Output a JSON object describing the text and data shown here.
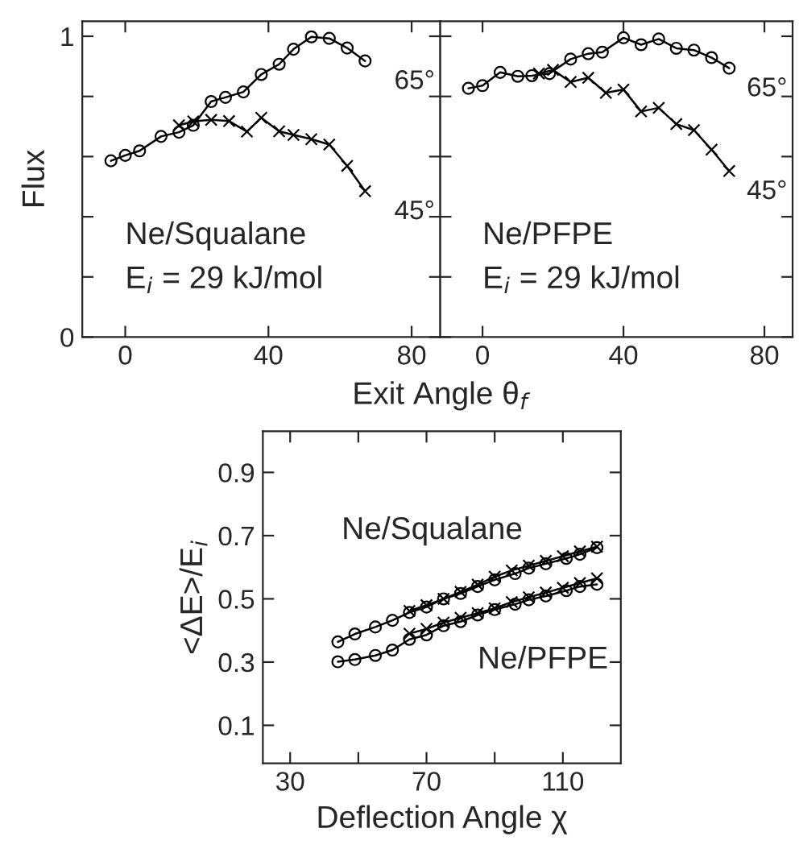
{
  "chart_data": [
    {
      "type": "line",
      "ylabel": "Flux",
      "xlabel": "Exit Angle θ$_{f}$",
      "xlim": [
        -12,
        88
      ],
      "ylim": [
        0,
        1.05
      ],
      "xticks": [
        0,
        40,
        80
      ],
      "yticks": [
        0,
        {
          "value": 0.2,
          "label": null
        },
        {
          "value": 0.4,
          "label": null
        },
        {
          "value": 0.6,
          "label": null
        },
        {
          "value": 0.8,
          "label": null
        },
        1
      ],
      "legend": false,
      "grid": false,
      "line_style": "solid",
      "annotations": [
        "Ne/Squalane",
        "E$_{i}$ = 29 kJ/mol"
      ],
      "series": [
        {
          "name": "65°",
          "color": "#000000",
          "marker": "circle",
          "x": [
            -4,
            0,
            4,
            10,
            15,
            19,
            24,
            28,
            33,
            38,
            43,
            47,
            52,
            57,
            62,
            67
          ],
          "values": [
            0.586,
            0.604,
            0.619,
            0.667,
            0.681,
            0.704,
            0.783,
            0.797,
            0.815,
            0.873,
            0.907,
            0.957,
            0.998,
            0.993,
            0.961,
            0.918
          ]
        },
        {
          "name": "45°",
          "color": "#000000",
          "marker": "cross",
          "x": [
            15,
            19,
            24,
            29,
            34,
            38,
            43,
            47,
            52,
            57,
            62,
            67
          ],
          "values": [
            0.704,
            0.717,
            0.722,
            0.718,
            0.683,
            0.729,
            0.684,
            0.672,
            0.658,
            0.64,
            0.569,
            0.485
          ]
        }
      ]
    },
    {
      "type": "line",
      "xlim": [
        -12,
        88
      ],
      "ylim": [
        0,
        1.05
      ],
      "xticks": [
        0,
        40,
        80
      ],
      "yticks": [
        {
          "value": 0,
          "label": null
        },
        {
          "value": 0.2,
          "label": null
        },
        {
          "value": 0.4,
          "label": null
        },
        {
          "value": 0.6,
          "label": null
        },
        {
          "value": 0.8,
          "label": null
        },
        {
          "value": 1,
          "label": null
        }
      ],
      "tick_labels": "x",
      "legend": false,
      "grid": false,
      "line_style": "solid",
      "annotations": [
        "Ne/PFPE",
        "E$_{i}$ = 29 kJ/mol"
      ],
      "series": [
        {
          "name": "65°",
          "color": "#000000",
          "marker": "circle",
          "x": [
            -4,
            0,
            5,
            10,
            14,
            19,
            25,
            30,
            34,
            40,
            45,
            50,
            55,
            60,
            65,
            70
          ],
          "values": [
            0.827,
            0.836,
            0.88,
            0.867,
            0.869,
            0.876,
            0.924,
            0.942,
            0.947,
            0.995,
            0.972,
            0.991,
            0.96,
            0.954,
            0.929,
            0.894
          ]
        },
        {
          "name": "45°",
          "color": "#000000",
          "marker": "cross",
          "x": [
            16,
            20,
            25,
            30,
            35,
            40,
            45,
            50,
            55,
            60,
            65,
            70
          ],
          "values": [
            0.876,
            0.888,
            0.848,
            0.862,
            0.812,
            0.823,
            0.75,
            0.762,
            0.708,
            0.688,
            0.623,
            0.552
          ]
        }
      ]
    },
    {
      "type": "line",
      "xlabel": "Deflection Angle χ",
      "ylabel": "<ΔE>/E$_{i}$",
      "xlim": [
        22,
        127
      ],
      "ylim": [
        -0.02,
        1.03
      ],
      "xticks": [
        30,
        {
          "value": 50,
          "label": null
        },
        70,
        {
          "value": 90,
          "label": null
        },
        110
      ],
      "yticks": [
        0.1,
        0.3,
        0.5,
        0.7,
        0.9
      ],
      "legend": false,
      "grid": false,
      "line_style": "solid",
      "annotations": [
        "Ne/Squalane",
        "Ne/PFPE"
      ],
      "series": [
        {
          "color": "#000000",
          "marker": "circle",
          "x": [
            44,
            49,
            55,
            60,
            65,
            70,
            75,
            80,
            85,
            90,
            96,
            100,
            105,
            111,
            115,
            120
          ],
          "values": [
            0.364,
            0.389,
            0.411,
            0.432,
            0.457,
            0.474,
            0.5,
            0.517,
            0.539,
            0.56,
            0.58,
            0.597,
            0.611,
            0.628,
            0.641,
            0.662
          ]
        },
        {
          "color": "#000000",
          "marker": "cross",
          "x": [
            65,
            70,
            75,
            80,
            85,
            90,
            95,
            100,
            105,
            110,
            115,
            120
          ],
          "values": [
            0.462,
            0.48,
            0.5,
            0.522,
            0.545,
            0.57,
            0.59,
            0.605,
            0.62,
            0.635,
            0.65,
            0.665
          ]
        },
        {
          "color": "#000000",
          "marker": "circle",
          "x": [
            44,
            49,
            55,
            60,
            65,
            70,
            75,
            80,
            85,
            90,
            96,
            100,
            105,
            111,
            115,
            120
          ],
          "values": [
            0.301,
            0.308,
            0.321,
            0.338,
            0.372,
            0.386,
            0.415,
            0.428,
            0.449,
            0.466,
            0.483,
            0.497,
            0.509,
            0.526,
            0.539,
            0.546
          ]
        },
        {
          "color": "#000000",
          "marker": "cross",
          "x": [
            65,
            70,
            75,
            80,
            85,
            90,
            95,
            100,
            105,
            110,
            115,
            120
          ],
          "values": [
            0.39,
            0.405,
            0.425,
            0.44,
            0.455,
            0.47,
            0.49,
            0.505,
            0.52,
            0.535,
            0.55,
            0.565
          ]
        }
      ]
    }
  ]
}
